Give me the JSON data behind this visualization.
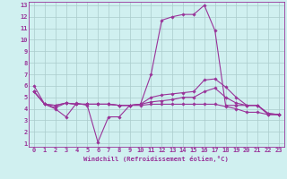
{
  "xlabel": "Windchill (Refroidissement éolien,°C)",
  "x_values": [
    0,
    1,
    2,
    3,
    4,
    5,
    6,
    7,
    8,
    9,
    10,
    11,
    12,
    13,
    14,
    15,
    16,
    17,
    18,
    19,
    20,
    21,
    22,
    23
  ],
  "line1": [
    6.0,
    4.4,
    4.0,
    3.3,
    4.5,
    4.3,
    1.1,
    3.3,
    3.3,
    4.3,
    4.4,
    7.0,
    11.7,
    12.0,
    12.2,
    12.2,
    13.0,
    10.8,
    4.3,
    4.3,
    4.3,
    4.3,
    3.5,
    3.5
  ],
  "line2": [
    5.5,
    4.4,
    4.1,
    4.5,
    4.4,
    4.4,
    4.4,
    4.4,
    4.3,
    4.3,
    4.4,
    5.0,
    5.2,
    5.3,
    5.4,
    5.5,
    6.5,
    6.6,
    5.9,
    5.0,
    4.3,
    4.3,
    3.6,
    3.5
  ],
  "line3": [
    5.5,
    4.4,
    4.3,
    4.5,
    4.4,
    4.4,
    4.4,
    4.4,
    4.3,
    4.3,
    4.4,
    4.6,
    4.7,
    4.8,
    5.0,
    5.0,
    5.5,
    5.8,
    5.0,
    4.5,
    4.3,
    4.3,
    3.6,
    3.5
  ],
  "line4": [
    5.5,
    4.4,
    4.3,
    4.5,
    4.4,
    4.4,
    4.4,
    4.4,
    4.3,
    4.3,
    4.3,
    4.4,
    4.4,
    4.4,
    4.4,
    4.4,
    4.4,
    4.4,
    4.2,
    4.0,
    3.7,
    3.7,
    3.5,
    3.5
  ],
  "line_color": "#993399",
  "bg_color": "#d0f0f0",
  "grid_color": "#aacccc",
  "axis_color": "#993399",
  "tick_color": "#993399",
  "ylim": [
    1,
    13
  ],
  "xlim": [
    -0.5,
    23.5
  ],
  "yticks": [
    1,
    2,
    3,
    4,
    5,
    6,
    7,
    8,
    9,
    10,
    11,
    12,
    13
  ],
  "xticks": [
    0,
    1,
    2,
    3,
    4,
    5,
    6,
    7,
    8,
    9,
    10,
    11,
    12,
    13,
    14,
    15,
    16,
    17,
    18,
    19,
    20,
    21,
    22,
    23
  ],
  "marker": "D",
  "marker_size": 1.8,
  "line_width": 0.8,
  "tick_fontsize": 5.0,
  "xlabel_fontsize": 5.2
}
